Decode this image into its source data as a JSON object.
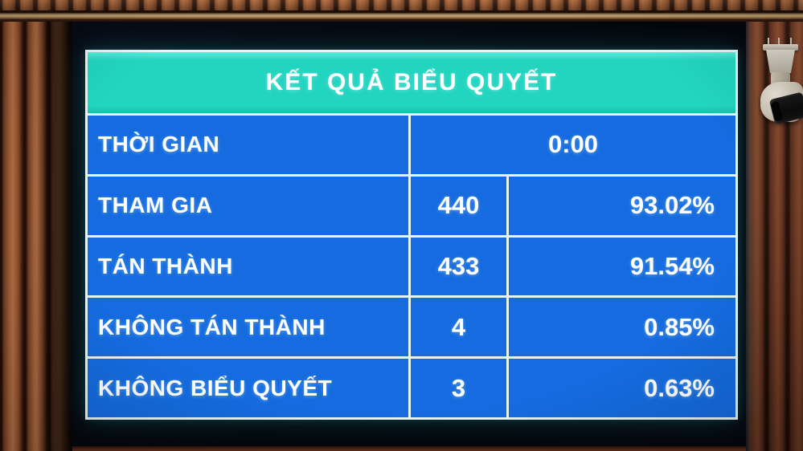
{
  "board": {
    "title": "KẾT QUẢ BIỂU QUYẾT",
    "time": {
      "label": "THỜI GIAN",
      "value": "0:00"
    },
    "rows": [
      {
        "label": "THAM GIA",
        "count": "440",
        "percent": "93.02%"
      },
      {
        "label": "TÁN THÀNH",
        "count": "433",
        "percent": "91.54%"
      },
      {
        "label": "KHÔNG TÁN THÀNH",
        "count": "4",
        "percent": "0.85%"
      },
      {
        "label": "KHÔNG BIỂU QUYẾT",
        "count": "3",
        "percent": "0.63%"
      }
    ],
    "colors": {
      "header_bg": "#22d5c0",
      "cell_bg": "#156bdf",
      "gridline": "#e6f5f2",
      "text": "#ffffff"
    }
  }
}
